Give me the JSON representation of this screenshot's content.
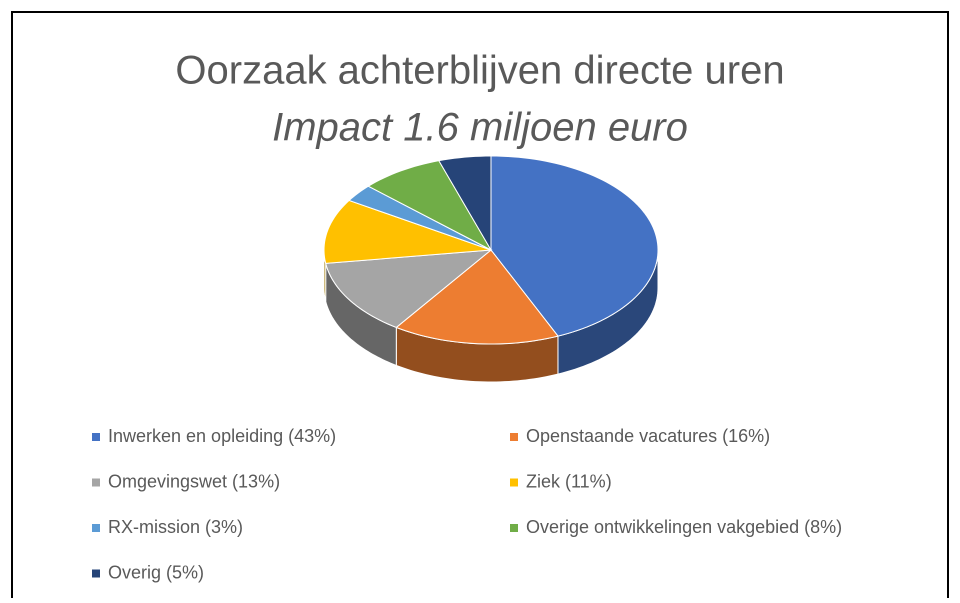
{
  "chart_data": {
    "type": "pie",
    "title": "Oorzaak achterblijven directe uren",
    "subtitle": "Impact 1.6 miljoen euro",
    "categories": [
      "Inwerken en opleiding (43%)",
      "Openstaande vacatures (16%)",
      "Omgevingswet (13%)",
      "Ziek (11%)",
      "RX-mission (3%)",
      "Overige ontwikkelingen vakgebied (8%)",
      "Overig (5%)"
    ],
    "values": [
      43,
      16,
      13,
      11,
      3,
      8,
      5
    ],
    "colors": [
      "#4472c4",
      "#ed7d31",
      "#a5a5a5",
      "#ffc000",
      "#5b9bd5",
      "#70ad47",
      "#264478"
    ],
    "legend": "bottom"
  }
}
